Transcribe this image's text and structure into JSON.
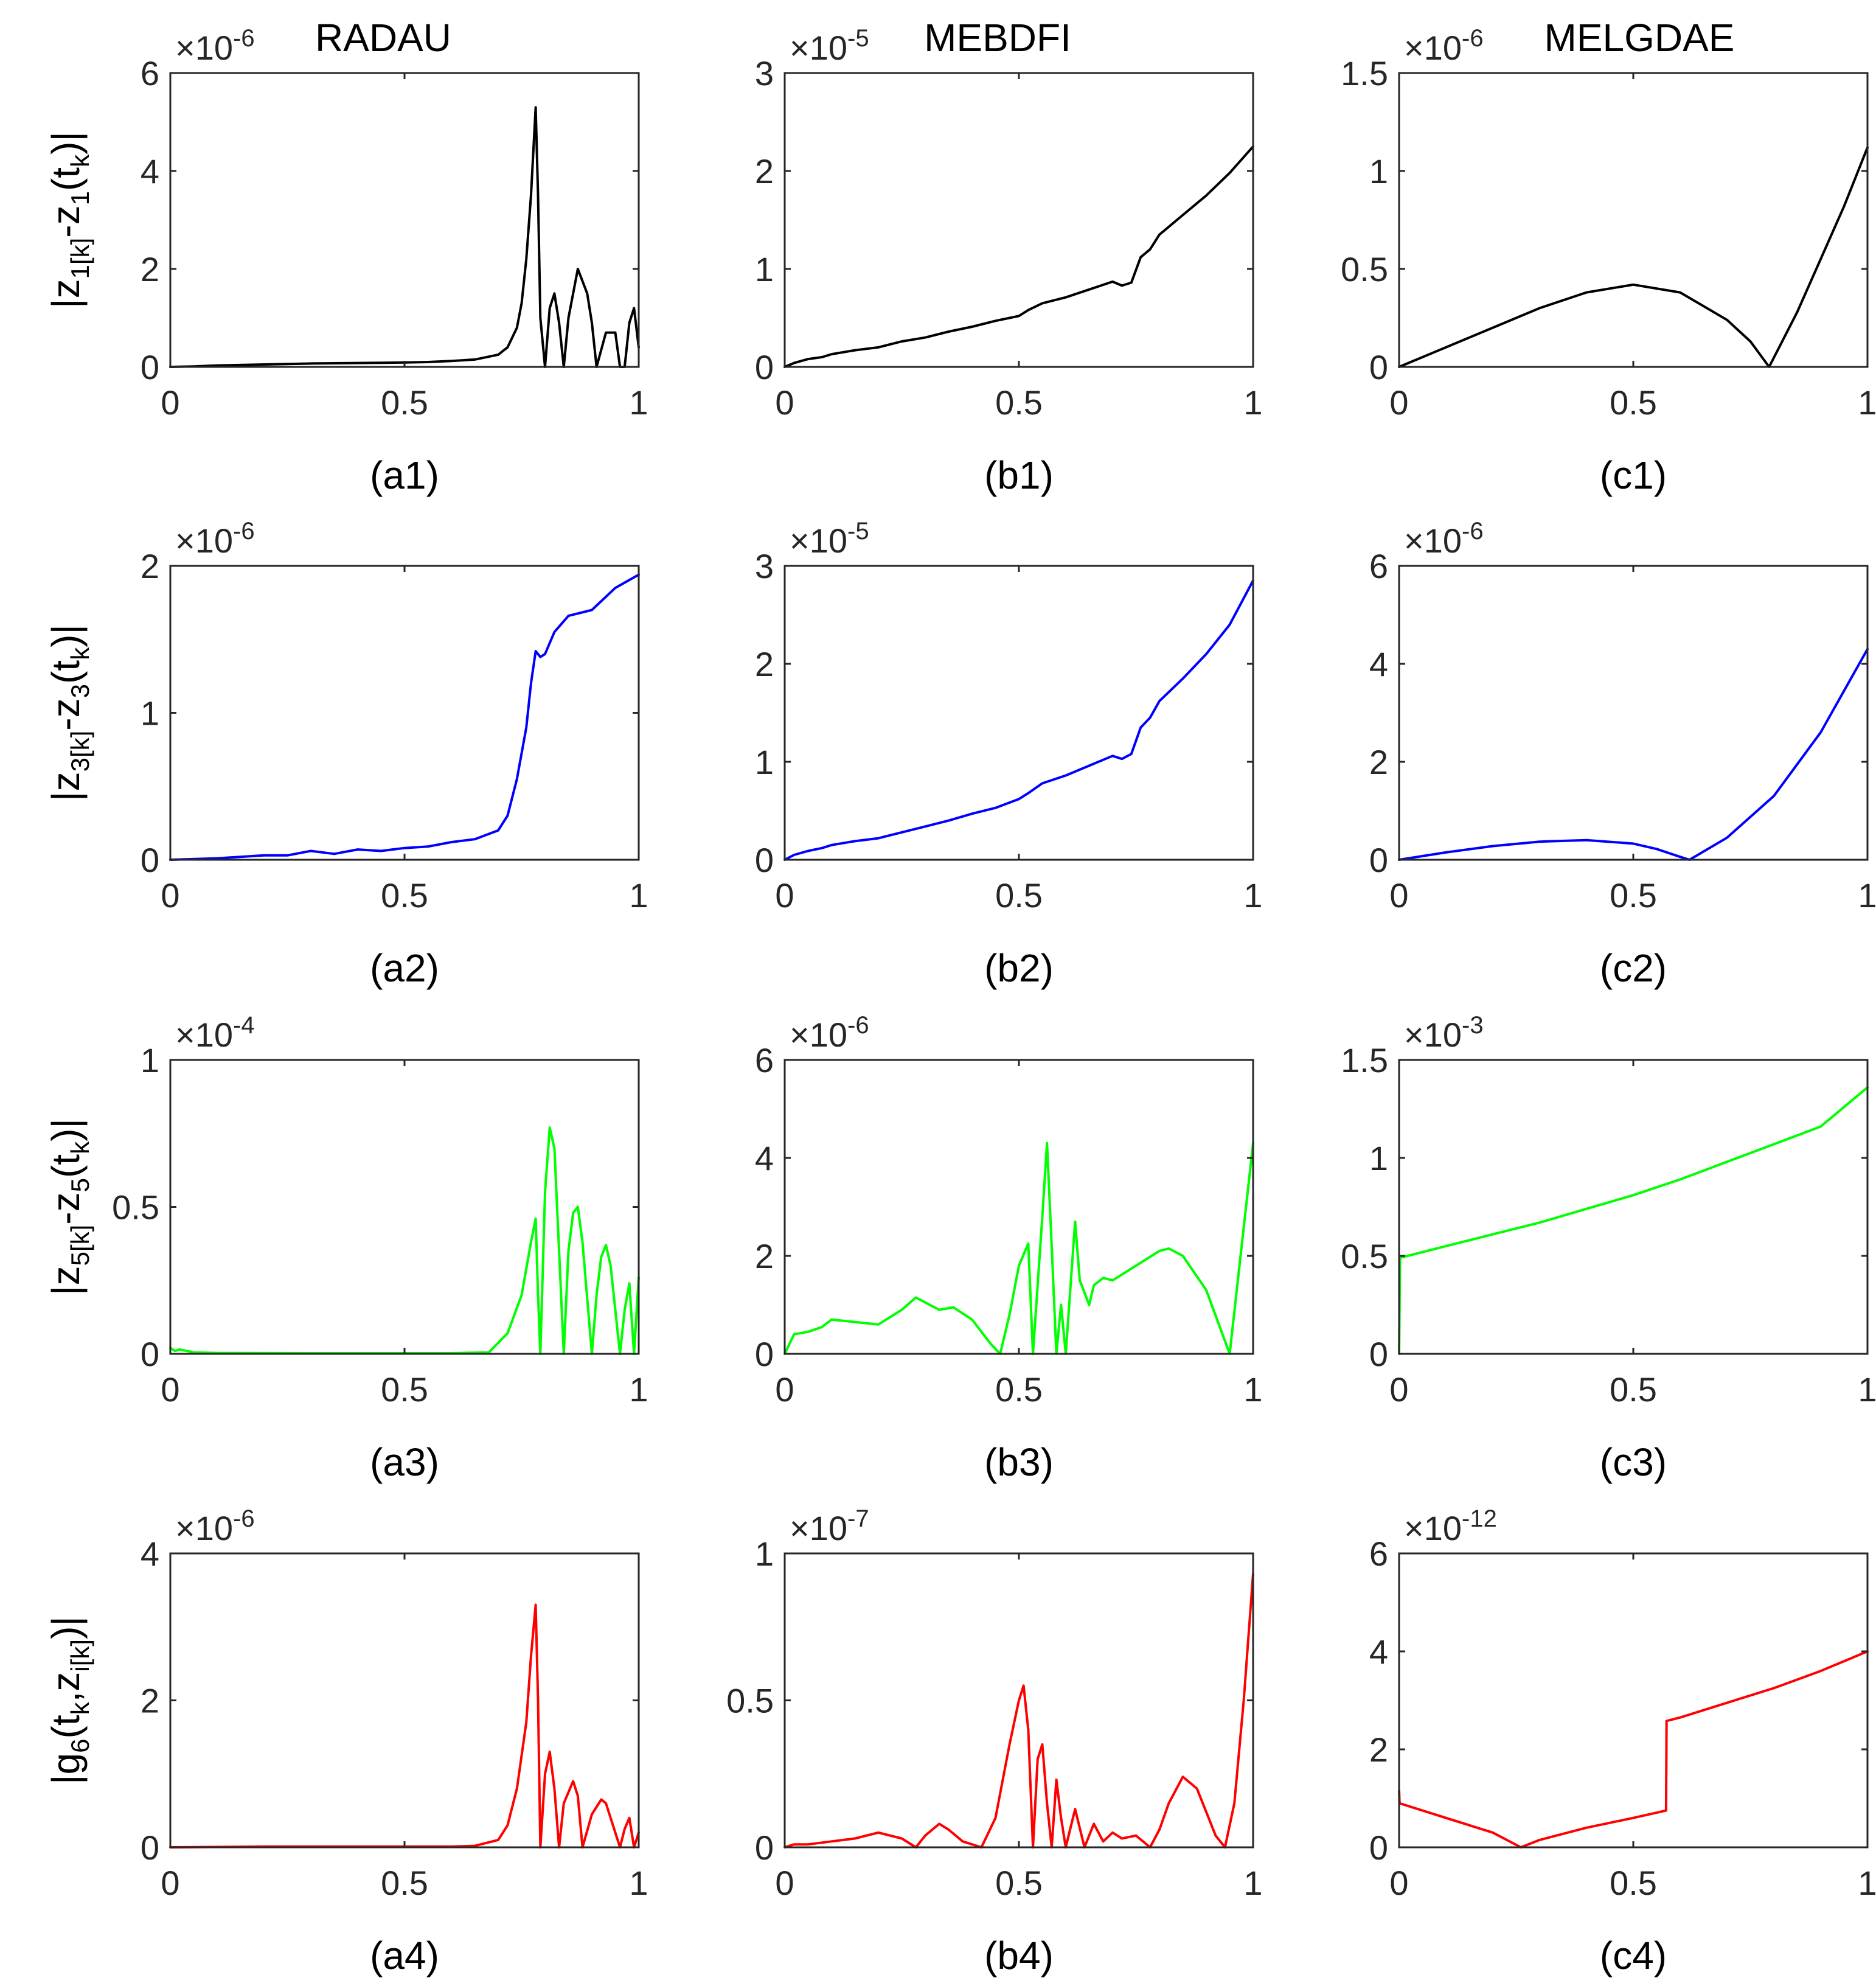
{
  "figure": {
    "titles": [
      "RADAU",
      "MEBDFI",
      "MELGDAE"
    ],
    "row_ylabels": [
      {
        "main": "|z",
        "sub1": "1[k]",
        "mid": "-z",
        "sub2": "1",
        "post": "(t",
        "sub3": "k",
        "end": ")|"
      },
      {
        "main": "|z",
        "sub1": "3[k]",
        "mid": "-z",
        "sub2": "3",
        "post": "(t",
        "sub3": "k",
        "end": ")|"
      },
      {
        "main": "|z",
        "sub1": "5[k]",
        "mid": "-z",
        "sub2": "5",
        "post": "(t",
        "sub3": "k",
        "end": ")|"
      },
      {
        "main": "|g",
        "sub1": "6",
        "mid": "(t",
        "sub2": "k",
        "post": ",z",
        "sub3": "i[k]",
        "end": ")|"
      }
    ],
    "multiplier_prefix": "×10"
  },
  "colors": {
    "row1": "#000000",
    "row2": "#0000ff",
    "row3": "#00ff00",
    "row4": "#ff0000"
  },
  "chart_data": [
    {
      "id": "a1",
      "label": "(a1)",
      "type": "line",
      "color": "#000000",
      "xlim": [
        0,
        1
      ],
      "xticks": [
        "0",
        "0.5",
        "1"
      ],
      "ylim": [
        0,
        6
      ],
      "yticks": [
        "0",
        "2",
        "4",
        "6"
      ],
      "exponent": "-6",
      "x": [
        0,
        0.05,
        0.1,
        0.2,
        0.3,
        0.4,
        0.5,
        0.55,
        0.6,
        0.65,
        0.7,
        0.72,
        0.74,
        0.75,
        0.76,
        0.77,
        0.78,
        0.785,
        0.79,
        0.8,
        0.81,
        0.82,
        0.83,
        0.84,
        0.85,
        0.87,
        0.89,
        0.9,
        0.91,
        0.93,
        0.95,
        0.96,
        0.97,
        0.98,
        0.99,
        1.0
      ],
      "y": [
        0,
        0.01,
        0.03,
        0.05,
        0.07,
        0.08,
        0.09,
        0.1,
        0.12,
        0.15,
        0.25,
        0.4,
        0.8,
        1.3,
        2.2,
        3.5,
        5.3,
        3.5,
        1.0,
        0.0,
        1.2,
        1.5,
        0.9,
        0.0,
        1.0,
        2.0,
        1.5,
        0.9,
        0.0,
        0.7,
        0.7,
        0.0,
        0.0,
        0.9,
        1.2,
        0.4
      ]
    },
    {
      "id": "b1",
      "label": "(b1)",
      "type": "line",
      "color": "#000000",
      "xlim": [
        0,
        1
      ],
      "xticks": [
        "0",
        "0.5",
        "1"
      ],
      "ylim": [
        0,
        3
      ],
      "yticks": [
        "0",
        "1",
        "2",
        "3"
      ],
      "exponent": "-5",
      "x": [
        0,
        0.02,
        0.05,
        0.08,
        0.1,
        0.15,
        0.2,
        0.25,
        0.3,
        0.35,
        0.4,
        0.45,
        0.5,
        0.52,
        0.55,
        0.6,
        0.65,
        0.7,
        0.72,
        0.74,
        0.76,
        0.78,
        0.8,
        0.85,
        0.9,
        0.95,
        1.0
      ],
      "y": [
        0,
        0.04,
        0.08,
        0.1,
        0.13,
        0.17,
        0.2,
        0.26,
        0.3,
        0.36,
        0.41,
        0.47,
        0.52,
        0.58,
        0.65,
        0.71,
        0.79,
        0.87,
        0.83,
        0.86,
        1.12,
        1.2,
        1.35,
        1.55,
        1.75,
        1.98,
        2.25
      ]
    },
    {
      "id": "c1",
      "label": "(c1)",
      "type": "line",
      "color": "#000000",
      "xlim": [
        0,
        1
      ],
      "xticks": [
        "0",
        "0.5",
        "1"
      ],
      "ylim": [
        0,
        1.5
      ],
      "yticks": [
        "0",
        "0.5",
        "1",
        "1.5"
      ],
      "exponent": "-6",
      "x": [
        0,
        0.1,
        0.2,
        0.3,
        0.4,
        0.5,
        0.6,
        0.7,
        0.75,
        0.79,
        0.85,
        0.9,
        0.95,
        1.0
      ],
      "y": [
        0,
        0.1,
        0.2,
        0.3,
        0.38,
        0.42,
        0.38,
        0.24,
        0.13,
        0.0,
        0.28,
        0.55,
        0.82,
        1.12
      ]
    },
    {
      "id": "a2",
      "label": "(a2)",
      "type": "line",
      "color": "#0000ff",
      "xlim": [
        0,
        1
      ],
      "xticks": [
        "0",
        "0.5",
        "1"
      ],
      "ylim": [
        0,
        2
      ],
      "yticks": [
        "0",
        "1",
        "2"
      ],
      "exponent": "-6",
      "x": [
        0,
        0.1,
        0.2,
        0.25,
        0.3,
        0.35,
        0.4,
        0.45,
        0.5,
        0.55,
        0.6,
        0.65,
        0.7,
        0.72,
        0.74,
        0.76,
        0.77,
        0.78,
        0.79,
        0.8,
        0.82,
        0.85,
        0.9,
        0.95,
        1.0
      ],
      "y": [
        0,
        0.01,
        0.03,
        0.03,
        0.06,
        0.04,
        0.07,
        0.06,
        0.08,
        0.09,
        0.12,
        0.14,
        0.2,
        0.3,
        0.55,
        0.9,
        1.2,
        1.42,
        1.38,
        1.4,
        1.55,
        1.66,
        1.7,
        1.85,
        1.94
      ]
    },
    {
      "id": "b2",
      "label": "(b2)",
      "type": "line",
      "color": "#0000ff",
      "xlim": [
        0,
        1
      ],
      "xticks": [
        "0",
        "0.5",
        "1"
      ],
      "ylim": [
        0,
        3
      ],
      "yticks": [
        "0",
        "1",
        "2",
        "3"
      ],
      "exponent": "-5",
      "x": [
        0,
        0.02,
        0.05,
        0.08,
        0.1,
        0.15,
        0.2,
        0.25,
        0.3,
        0.35,
        0.4,
        0.45,
        0.5,
        0.52,
        0.55,
        0.6,
        0.65,
        0.7,
        0.72,
        0.74,
        0.76,
        0.78,
        0.8,
        0.85,
        0.9,
        0.95,
        1.0
      ],
      "y": [
        0,
        0.05,
        0.09,
        0.12,
        0.15,
        0.19,
        0.22,
        0.28,
        0.34,
        0.4,
        0.47,
        0.53,
        0.62,
        0.68,
        0.78,
        0.86,
        0.96,
        1.06,
        1.03,
        1.08,
        1.35,
        1.45,
        1.62,
        1.85,
        2.1,
        2.4,
        2.85
      ]
    },
    {
      "id": "c2",
      "label": "(c2)",
      "type": "line",
      "color": "#0000ff",
      "xlim": [
        0,
        1
      ],
      "xticks": [
        "0",
        "0.5",
        "1"
      ],
      "ylim": [
        0,
        6
      ],
      "yticks": [
        "0",
        "2",
        "4",
        "6"
      ],
      "exponent": "-6",
      "x": [
        0,
        0.1,
        0.2,
        0.3,
        0.4,
        0.5,
        0.55,
        0.6,
        0.62,
        0.7,
        0.8,
        0.9,
        1.0
      ],
      "y": [
        0,
        0.15,
        0.28,
        0.37,
        0.4,
        0.33,
        0.22,
        0.06,
        0.0,
        0.45,
        1.3,
        2.6,
        4.3
      ]
    },
    {
      "id": "a3",
      "label": "(a3)",
      "type": "line",
      "color": "#00ff00",
      "xlim": [
        0,
        1
      ],
      "xticks": [
        "0",
        "0.5",
        "1"
      ],
      "ylim": [
        0,
        1
      ],
      "yticks": [
        "0",
        "0.5",
        "1"
      ],
      "exponent": "-4",
      "x": [
        0,
        0.01,
        0.02,
        0.05,
        0.1,
        0.3,
        0.5,
        0.6,
        0.68,
        0.72,
        0.75,
        0.77,
        0.78,
        0.785,
        0.79,
        0.8,
        0.81,
        0.82,
        0.83,
        0.84,
        0.85,
        0.86,
        0.87,
        0.88,
        0.9,
        0.91,
        0.92,
        0.93,
        0.94,
        0.95,
        0.96,
        0.97,
        0.98,
        0.99,
        1.0
      ],
      "y": [
        0.02,
        0.01,
        0.015,
        0.005,
        0.003,
        0.002,
        0.002,
        0.002,
        0.005,
        0.07,
        0.2,
        0.38,
        0.46,
        0.2,
        0.0,
        0.55,
        0.77,
        0.7,
        0.35,
        0.0,
        0.35,
        0.48,
        0.5,
        0.38,
        0.0,
        0.2,
        0.33,
        0.37,
        0.3,
        0.15,
        0.0,
        0.15,
        0.24,
        0.0,
        0.26
      ]
    },
    {
      "id": "b3",
      "label": "(b3)",
      "type": "line",
      "color": "#00ff00",
      "xlim": [
        0,
        1
      ],
      "xticks": [
        "0",
        "0.5",
        "1"
      ],
      "ylim": [
        0,
        6
      ],
      "yticks": [
        "0",
        "2",
        "4",
        "6"
      ],
      "exponent": "-6",
      "x": [
        0,
        0.01,
        0.02,
        0.05,
        0.08,
        0.1,
        0.15,
        0.2,
        0.25,
        0.28,
        0.3,
        0.33,
        0.36,
        0.4,
        0.44,
        0.46,
        0.48,
        0.5,
        0.52,
        0.53,
        0.55,
        0.56,
        0.57,
        0.58,
        0.59,
        0.6,
        0.62,
        0.63,
        0.65,
        0.66,
        0.68,
        0.7,
        0.75,
        0.8,
        0.82,
        0.85,
        0.9,
        0.95,
        1.0
      ],
      "y": [
        0,
        0.2,
        0.4,
        0.45,
        0.55,
        0.7,
        0.65,
        0.6,
        0.9,
        1.15,
        1.05,
        0.9,
        0.95,
        0.7,
        0.2,
        0.0,
        0.8,
        1.8,
        2.25,
        0.0,
        2.8,
        4.3,
        2.2,
        0.0,
        1.0,
        0.0,
        2.7,
        1.5,
        1.0,
        1.4,
        1.55,
        1.5,
        1.8,
        2.1,
        2.15,
        2.0,
        1.3,
        0.0,
        4.3
      ]
    },
    {
      "id": "c3",
      "label": "(c3)",
      "type": "line",
      "color": "#00ff00",
      "xlim": [
        0,
        1
      ],
      "xticks": [
        "0",
        "0.5",
        "1"
      ],
      "ylim": [
        0,
        1.5
      ],
      "yticks": [
        "0",
        "0.5",
        "1",
        "1.5"
      ],
      "exponent": "-3",
      "x": [
        0,
        0.002,
        0.1,
        0.2,
        0.3,
        0.4,
        0.5,
        0.6,
        0.7,
        0.8,
        0.9,
        1.0
      ],
      "y": [
        0,
        0.49,
        0.55,
        0.61,
        0.67,
        0.74,
        0.81,
        0.89,
        0.98,
        1.07,
        1.16,
        1.36
      ]
    },
    {
      "id": "a4",
      "label": "(a4)",
      "type": "line",
      "color": "#ff0000",
      "xlim": [
        0,
        1
      ],
      "xticks": [
        "0",
        "0.5",
        "1"
      ],
      "ylim": [
        0,
        4
      ],
      "yticks": [
        "0",
        "2",
        "4"
      ],
      "exponent": "-6",
      "x": [
        0,
        0.2,
        0.4,
        0.6,
        0.65,
        0.7,
        0.72,
        0.74,
        0.76,
        0.77,
        0.78,
        0.785,
        0.79,
        0.8,
        0.81,
        0.82,
        0.83,
        0.84,
        0.86,
        0.87,
        0.88,
        0.9,
        0.92,
        0.93,
        0.94,
        0.96,
        0.97,
        0.98,
        0.99,
        1.0
      ],
      "y": [
        0,
        0.01,
        0.01,
        0.01,
        0.02,
        0.1,
        0.3,
        0.8,
        1.7,
        2.6,
        3.3,
        2.0,
        0.0,
        1.0,
        1.3,
        0.8,
        0.0,
        0.6,
        0.9,
        0.7,
        0.0,
        0.45,
        0.65,
        0.6,
        0.4,
        0.0,
        0.25,
        0.4,
        0.0,
        0.2
      ]
    },
    {
      "id": "b4",
      "label": "(b4)",
      "type": "line",
      "color": "#ff0000",
      "xlim": [
        0,
        1
      ],
      "xticks": [
        "0",
        "0.5",
        "1"
      ],
      "ylim": [
        0,
        1
      ],
      "yticks": [
        "0",
        "0.5",
        "1"
      ],
      "exponent": "-7",
      "x": [
        0,
        0.02,
        0.05,
        0.1,
        0.15,
        0.2,
        0.25,
        0.28,
        0.3,
        0.33,
        0.35,
        0.38,
        0.42,
        0.45,
        0.48,
        0.5,
        0.51,
        0.52,
        0.53,
        0.54,
        0.55,
        0.56,
        0.57,
        0.58,
        0.59,
        0.6,
        0.62,
        0.64,
        0.66,
        0.68,
        0.7,
        0.72,
        0.75,
        0.78,
        0.8,
        0.82,
        0.85,
        0.88,
        0.9,
        0.92,
        0.94,
        0.96,
        0.98,
        1.0
      ],
      "y": [
        0,
        0.01,
        0.01,
        0.02,
        0.03,
        0.05,
        0.03,
        0.0,
        0.04,
        0.08,
        0.06,
        0.02,
        0.0,
        0.1,
        0.35,
        0.5,
        0.55,
        0.4,
        0.0,
        0.3,
        0.35,
        0.15,
        0.0,
        0.23,
        0.1,
        0.0,
        0.13,
        0.0,
        0.08,
        0.02,
        0.05,
        0.03,
        0.04,
        0.0,
        0.06,
        0.15,
        0.24,
        0.2,
        0.12,
        0.04,
        0.0,
        0.15,
        0.5,
        0.93
      ]
    },
    {
      "id": "c4",
      "label": "(c4)",
      "type": "line",
      "color": "#ff0000",
      "xlim": [
        0,
        1
      ],
      "xticks": [
        "0",
        "0.5",
        "1"
      ],
      "ylim": [
        0,
        6
      ],
      "yticks": [
        "0",
        "2",
        "4",
        "6"
      ],
      "exponent": "-12",
      "x": [
        0,
        0.001,
        0.1,
        0.2,
        0.26,
        0.3,
        0.4,
        0.5,
        0.57,
        0.571,
        0.6,
        0.7,
        0.8,
        0.9,
        1.0
      ],
      "y": [
        1.15,
        0.9,
        0.6,
        0.3,
        0.0,
        0.15,
        0.4,
        0.6,
        0.75,
        2.58,
        2.65,
        2.95,
        3.25,
        3.6,
        4.0
      ]
    }
  ]
}
